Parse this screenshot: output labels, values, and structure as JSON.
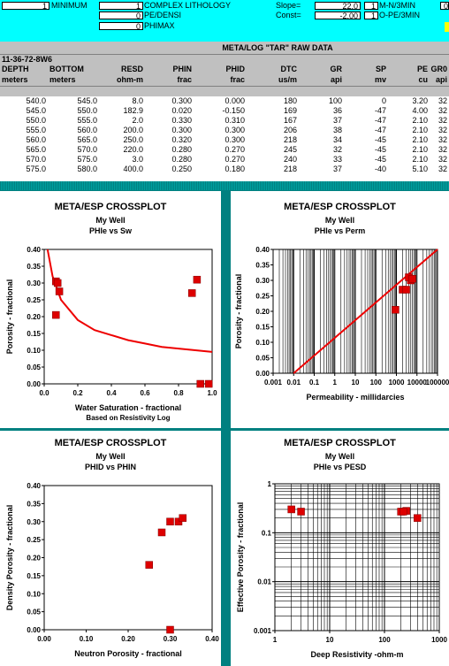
{
  "params": {
    "minimum_value": "1",
    "minimum_label": "MINIMUM",
    "complex_lithology_value": "1",
    "complex_lithology_label": "COMPLEX LITHOLOGY",
    "pe_densi_value": "0",
    "pe_densi_label": "PE/DENSI",
    "phimax_value": "0",
    "phimax_label": "PHIMAX",
    "slope_label": "Slope=",
    "slope_value": "22.0",
    "const_label": "Const=",
    "const_value": "-2.00",
    "mn3min_value": "1",
    "mn3min_label": "M-N/3MIN",
    "ope3min_value": "1",
    "ope3min_label": "O-PE/3MIN",
    "right_cut_value": "0"
  },
  "table": {
    "title": "META/LOG \"TAR\" RAW DATA",
    "well_id": "11-36-72-8W6",
    "columns": [
      "DEPTH",
      "BOTTOM",
      "RESD",
      "PHIN",
      "PHID",
      "DTC",
      "GR",
      "SP",
      "PE",
      "GR0"
    ],
    "units": [
      "meters",
      "meters",
      "ohm-m",
      "frac",
      "frac",
      "us/m",
      "api",
      "mv",
      "cu",
      "api"
    ],
    "rows": [
      [
        "540.0",
        "545.0",
        "8.0",
        "0.300",
        "0.000",
        "180",
        "100",
        "0",
        "3.20",
        "32"
      ],
      [
        "545.0",
        "550.0",
        "182.9",
        "0.020",
        "-0.150",
        "169",
        "36",
        "-47",
        "4.00",
        "32"
      ],
      [
        "550.0",
        "555.0",
        "2.0",
        "0.330",
        "0.310",
        "167",
        "37",
        "-47",
        "2.10",
        "32"
      ],
      [
        "555.0",
        "560.0",
        "200.0",
        "0.300",
        "0.300",
        "206",
        "38",
        "-47",
        "2.10",
        "32"
      ],
      [
        "560.0",
        "565.0",
        "250.0",
        "0.320",
        "0.300",
        "218",
        "34",
        "-45",
        "2.10",
        "32"
      ],
      [
        "565.0",
        "570.0",
        "220.0",
        "0.280",
        "0.270",
        "245",
        "32",
        "-45",
        "2.10",
        "32"
      ],
      [
        "570.0",
        "575.0",
        "3.0",
        "0.280",
        "0.270",
        "240",
        "33",
        "-45",
        "2.10",
        "32"
      ],
      [
        "575.0",
        "580.0",
        "400.0",
        "0.250",
        "0.180",
        "218",
        "37",
        "-40",
        "5.10",
        "32"
      ]
    ]
  },
  "colors": {
    "top_bg": "#00ffff",
    "header_bg": "#c0c0c0",
    "separator_bg": "#008080",
    "marker": "#dd0000",
    "curve": "#ee0000"
  },
  "chart_data": [
    {
      "type": "scatter",
      "title": "META/ESP CROSSPLOT",
      "subtitle": "My Well",
      "subtitle2": "PHIe vs Sw",
      "xlabel": "Water Saturation - fractional",
      "xlabel2": "Based on Resistivity Log",
      "ylabel": "Porosity - fractional",
      "xlim": [
        0,
        1
      ],
      "ylim": [
        0,
        0.4
      ],
      "xticks": [
        "0.0",
        "0.2",
        "0.4",
        "0.6",
        "0.8",
        "1.0"
      ],
      "yticks": [
        "0.00",
        "0.05",
        "0.10",
        "0.15",
        "0.20",
        "0.25",
        "0.30",
        "0.35",
        "0.40"
      ],
      "points": [
        [
          0.07,
          0.305
        ],
        [
          0.08,
          0.3
        ],
        [
          0.09,
          0.275
        ],
        [
          0.07,
          0.205
        ],
        [
          0.88,
          0.27
        ],
        [
          0.91,
          0.31
        ],
        [
          0.93,
          0.0
        ],
        [
          0.98,
          0.0
        ]
      ],
      "curve": [
        [
          0.02,
          0.4
        ],
        [
          0.05,
          0.32
        ],
        [
          0.1,
          0.25
        ],
        [
          0.2,
          0.19
        ],
        [
          0.3,
          0.16
        ],
        [
          0.4,
          0.145
        ],
        [
          0.5,
          0.13
        ],
        [
          0.6,
          0.12
        ],
        [
          0.7,
          0.11
        ],
        [
          0.8,
          0.105
        ],
        [
          0.9,
          0.1
        ],
        [
          1.0,
          0.095
        ]
      ]
    },
    {
      "type": "scatter",
      "title": "META/ESP CROSSPLOT",
      "subtitle": "My Well",
      "subtitle2": "PHIe vs Perm",
      "xlabel": "Permeability - millidarcies",
      "ylabel": "Porosity - fractional",
      "xscale": "log",
      "xlim": [
        0.001,
        100000
      ],
      "ylim": [
        0,
        0.4
      ],
      "xticks": [
        "0.001",
        "0.01",
        "0.1",
        "1",
        "10",
        "100",
        "1000",
        "10000",
        "100000"
      ],
      "yticks": [
        "0.00",
        "0.05",
        "0.10",
        "0.15",
        "0.20",
        "0.25",
        "0.30",
        "0.35",
        "0.40"
      ],
      "points": [
        [
          900,
          0.205
        ],
        [
          2000,
          0.27
        ],
        [
          3000,
          0.27
        ],
        [
          5000,
          0.3
        ],
        [
          4000,
          0.31
        ],
        [
          6000,
          0.305
        ]
      ],
      "curve": [
        [
          0.01,
          0.0
        ],
        [
          100000,
          0.43
        ]
      ]
    },
    {
      "type": "scatter",
      "title": "META/ESP CROSSPLOT",
      "subtitle": "My Well",
      "subtitle2": "PHID vs PHIN",
      "xlabel": "Neutron Porosity - fractional",
      "ylabel": "Density Porosity - fractional",
      "xlim": [
        0,
        0.4
      ],
      "ylim": [
        0,
        0.4
      ],
      "xticks": [
        "0.00",
        "0.10",
        "0.20",
        "0.30",
        "0.40"
      ],
      "yticks": [
        "0.00",
        "0.05",
        "0.10",
        "0.15",
        "0.20",
        "0.25",
        "0.30",
        "0.35",
        "0.40"
      ],
      "points": [
        [
          0.25,
          0.18
        ],
        [
          0.28,
          0.27
        ],
        [
          0.3,
          0.3
        ],
        [
          0.32,
          0.3
        ],
        [
          0.33,
          0.31
        ],
        [
          0.3,
          0.0
        ]
      ]
    },
    {
      "type": "scatter",
      "title": "META/ESP CROSSPLOT",
      "subtitle": "My Well",
      "subtitle2": "PHIe vs PESD",
      "xlabel": "Deep Resistivity -ohm-m",
      "ylabel": "Effective Porosity - fractional",
      "xscale": "log",
      "yscale": "log",
      "xlim": [
        1,
        1000
      ],
      "ylim": [
        0.001,
        1
      ],
      "xticks": [
        "1",
        "10",
        "100",
        "1000"
      ],
      "yticks": [
        "0.001",
        "0.01",
        "0.1",
        "1"
      ],
      "points": [
        [
          2,
          0.3
        ],
        [
          3,
          0.27
        ],
        [
          200,
          0.27
        ],
        [
          250,
          0.28
        ],
        [
          220,
          0.27
        ],
        [
          400,
          0.2
        ]
      ]
    }
  ]
}
